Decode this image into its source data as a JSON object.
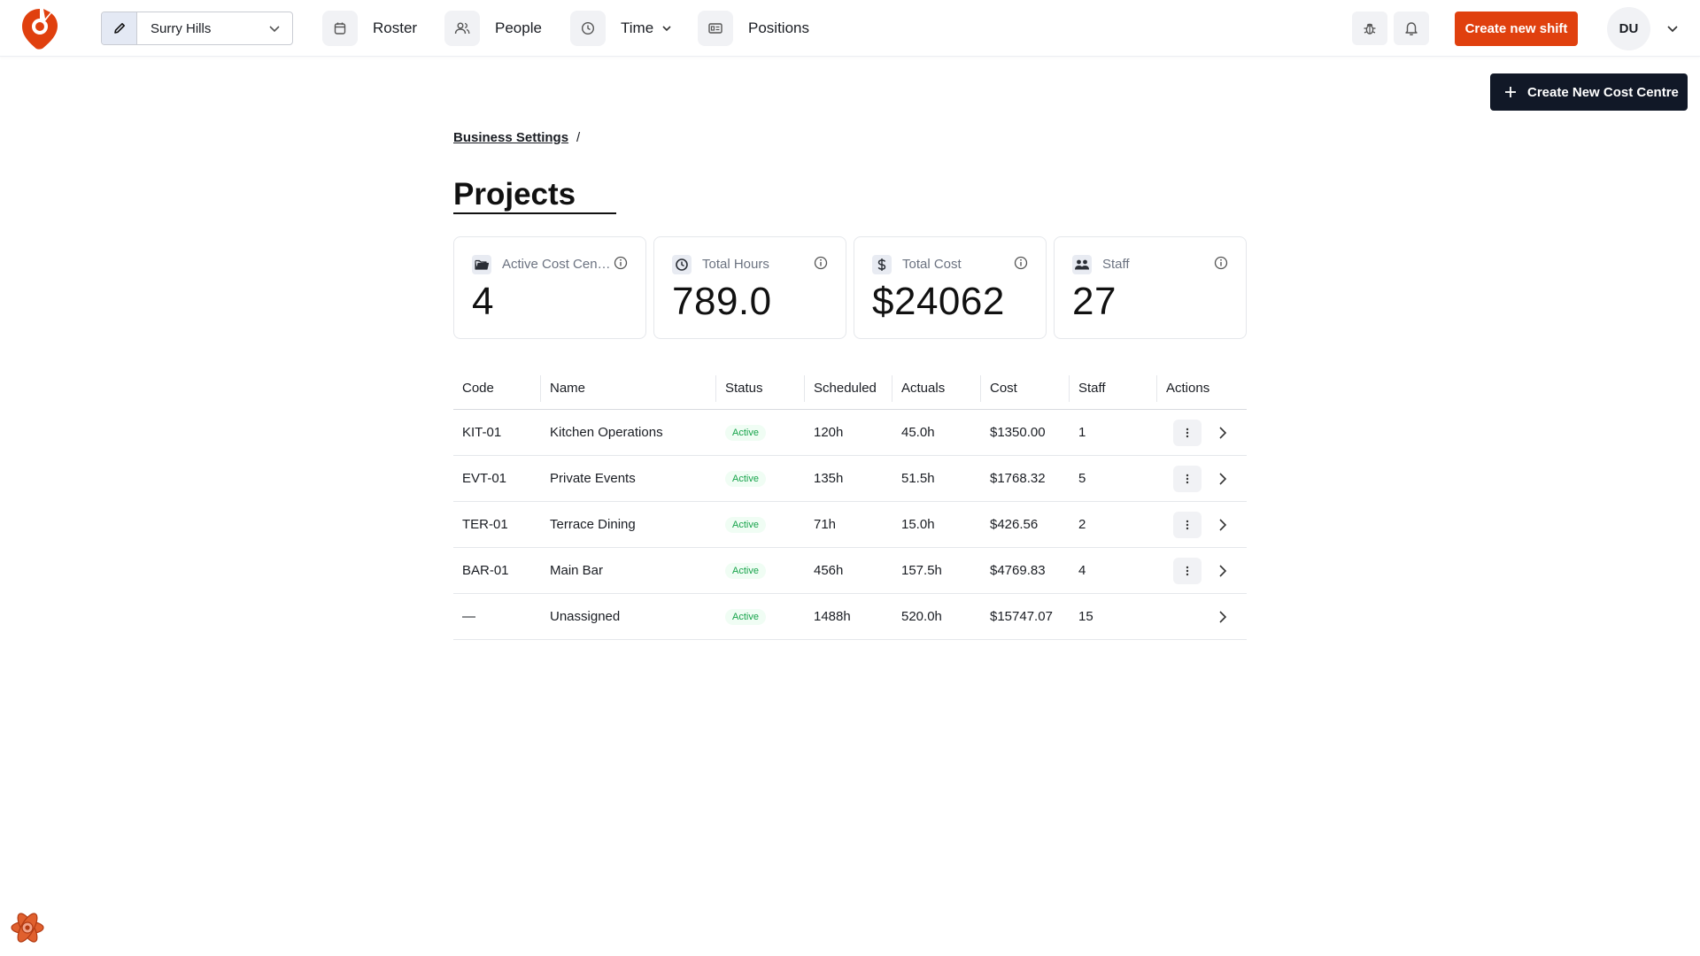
{
  "navbar": {
    "location": "Surry Hills",
    "items": [
      {
        "label": "Roster",
        "icon": "calendar-icon"
      },
      {
        "label": "People",
        "icon": "users-icon"
      },
      {
        "label": "Time",
        "icon": "clock-icon"
      },
      {
        "label": "Positions",
        "icon": "id-card-icon"
      }
    ],
    "create_shift_label": "Create new shift",
    "avatar_initials": "DU"
  },
  "toolbar": {
    "create_cost_centre_label": "Create New Cost Centre"
  },
  "breadcrumb": {
    "parent": "Business Settings",
    "separator": "/"
  },
  "page": {
    "title": "Projects"
  },
  "stats": [
    {
      "label": "Active Cost Centres",
      "value": "4",
      "icon": "folder-icon"
    },
    {
      "label": "Total Hours",
      "value": "789.0",
      "icon": "clock-icon"
    },
    {
      "label": "Total Cost",
      "value": "$24062",
      "icon": "dollar-icon"
    },
    {
      "label": "Staff",
      "value": "27",
      "icon": "users-icon"
    }
  ],
  "table": {
    "headers": [
      "Code",
      "Name",
      "Status",
      "Scheduled",
      "Actuals",
      "Cost",
      "Staff",
      "Actions"
    ],
    "rows": [
      {
        "code": "KIT-01",
        "name": "Kitchen Operations",
        "status": "Active",
        "scheduled": "120h",
        "actuals": "45.0h",
        "cost": "$1350.00",
        "staff": "1"
      },
      {
        "code": "EVT-01",
        "name": "Private Events",
        "status": "Active",
        "scheduled": "135h",
        "actuals": "51.5h",
        "cost": "$1768.32",
        "staff": "5"
      },
      {
        "code": "TER-01",
        "name": "Terrace Dining",
        "status": "Active",
        "scheduled": "71h",
        "actuals": "15.0h",
        "cost": "$426.56",
        "staff": "2"
      },
      {
        "code": "BAR-01",
        "name": "Main Bar",
        "status": "Active",
        "scheduled": "456h",
        "actuals": "157.5h",
        "cost": "$4769.83",
        "staff": "4"
      },
      {
        "code": "—",
        "name": "Unassigned",
        "status": "Active",
        "scheduled": "1488h",
        "actuals": "520.0h",
        "cost": "$15747.07",
        "staff": "15"
      }
    ]
  },
  "colors": {
    "brand": "#e0400e",
    "dark_button": "#111827",
    "active_badge": "#16a34a"
  }
}
